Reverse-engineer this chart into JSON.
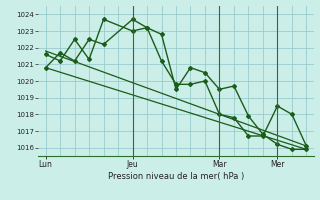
{
  "background_color": "#cceee8",
  "grid_color": "#99cccc",
  "line_color": "#1a5c1a",
  "dark_line_color": "#2d6e2d",
  "xlabel": "Pression niveau de la mer( hPa )",
  "ylim": [
    1015.5,
    1024.5
  ],
  "yticks": [
    1016,
    1017,
    1018,
    1019,
    1020,
    1021,
    1022,
    1023,
    1024
  ],
  "xtick_labels": [
    "Lun",
    "Jeu",
    "Mar",
    "Mer"
  ],
  "xtick_positions": [
    0,
    24,
    48,
    64
  ],
  "xlim": [
    -2,
    74
  ],
  "vlines": [
    24,
    48,
    64
  ],
  "series1_x": [
    0,
    4,
    8,
    12,
    16,
    24,
    28,
    32,
    36,
    40,
    44,
    48,
    52,
    56,
    60,
    64,
    68,
    72
  ],
  "series1_y": [
    1020.8,
    1021.7,
    1021.2,
    1022.5,
    1022.2,
    1023.7,
    1023.2,
    1022.8,
    1019.5,
    1020.8,
    1020.5,
    1019.5,
    1019.7,
    1017.9,
    1016.8,
    1016.2,
    1015.9,
    1015.9
  ],
  "series2_x": [
    0,
    4,
    8,
    12,
    16,
    24,
    28,
    32,
    36,
    40,
    44,
    48,
    52,
    56,
    60,
    64,
    68,
    72
  ],
  "series2_y": [
    1021.6,
    1021.2,
    1022.5,
    1021.3,
    1023.7,
    1023.0,
    1023.2,
    1021.2,
    1019.8,
    1019.8,
    1020.0,
    1018.0,
    1017.8,
    1016.7,
    1016.7,
    1018.5,
    1018.0,
    1016.1
  ],
  "trend1_x": [
    0,
    72
  ],
  "trend1_y": [
    1021.8,
    1016.1
  ],
  "trend2_x": [
    0,
    72
  ],
  "trend2_y": [
    1020.8,
    1015.9
  ]
}
